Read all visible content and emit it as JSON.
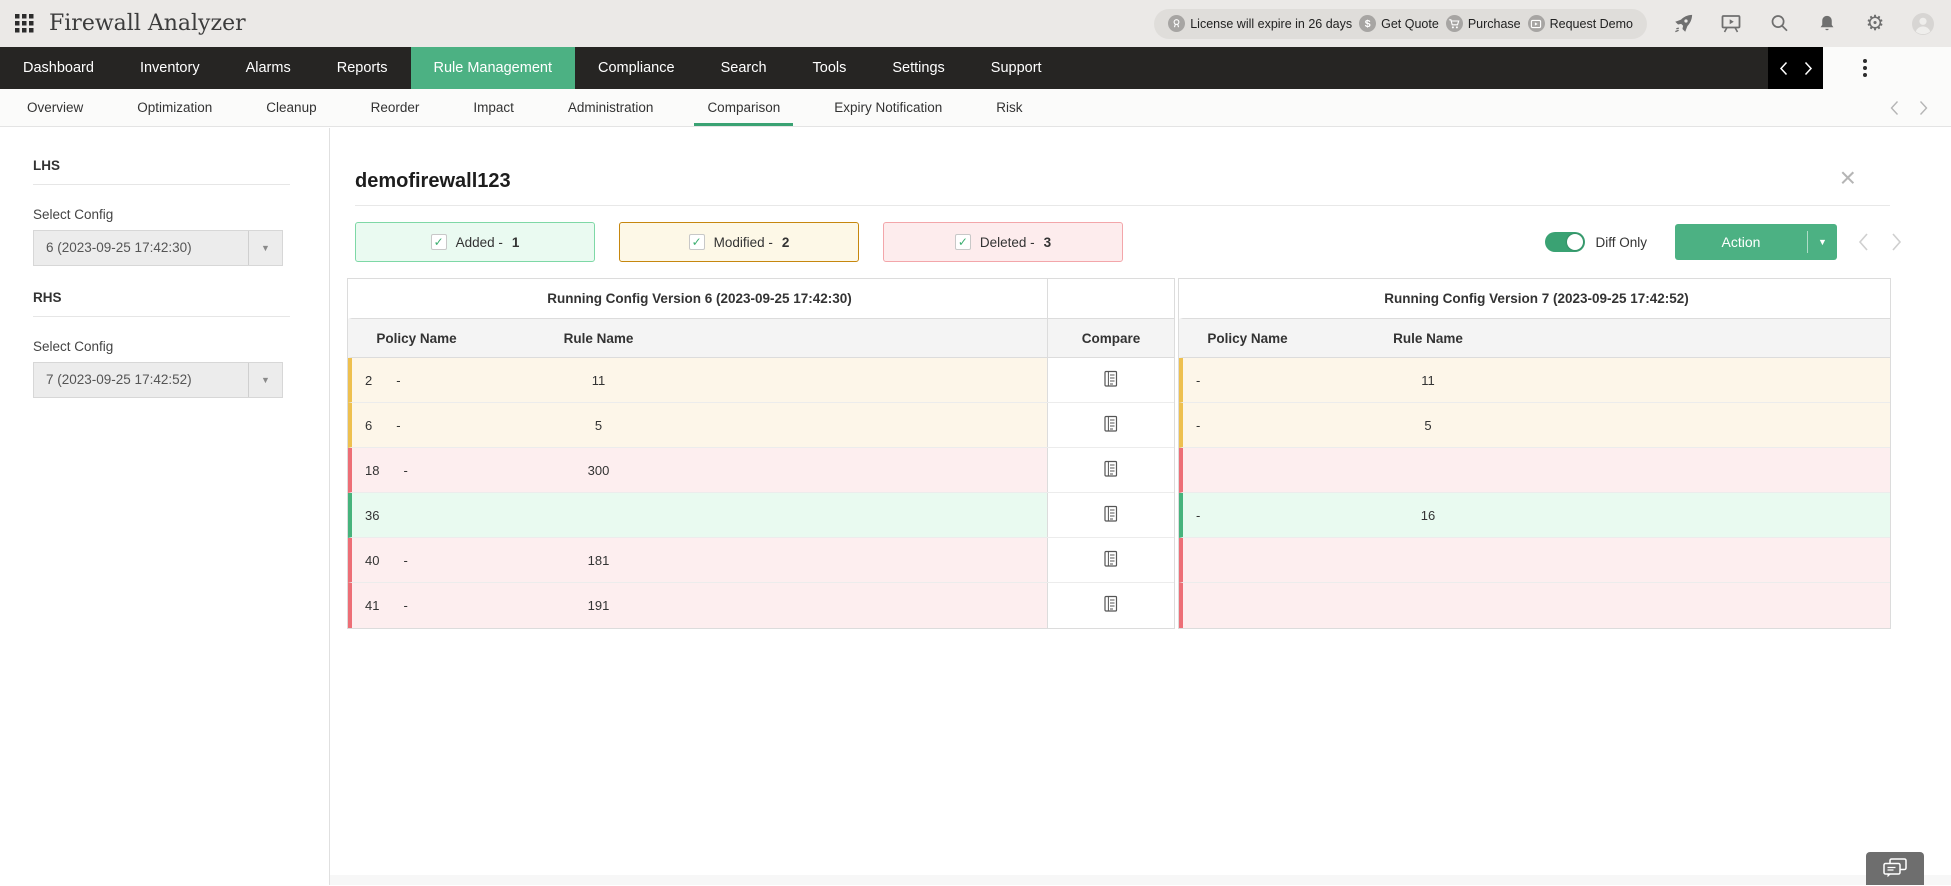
{
  "header": {
    "app_title": "Firewall Analyzer",
    "license": {
      "text": "License will expire in 26 days",
      "get_quote": "Get Quote",
      "purchase": "Purchase",
      "request_demo": "Request Demo"
    }
  },
  "nav": {
    "items": [
      "Dashboard",
      "Inventory",
      "Alarms",
      "Reports",
      "Rule Management",
      "Compliance",
      "Search",
      "Tools",
      "Settings",
      "Support"
    ],
    "active": "Rule Management"
  },
  "subnav": {
    "items": [
      "Overview",
      "Optimization",
      "Cleanup",
      "Reorder",
      "Impact",
      "Administration",
      "Comparison",
      "Expiry Notification",
      "Risk"
    ],
    "active": "Comparison"
  },
  "sidebar": {
    "lhs": {
      "heading": "LHS",
      "label": "Select Config",
      "value": "6 (2023-09-25 17:42:30)"
    },
    "rhs": {
      "heading": "RHS",
      "label": "Select Config",
      "value": "7 (2023-09-25 17:42:52)"
    }
  },
  "content": {
    "device_title": "demofirewall123",
    "filters": [
      {
        "id": "added",
        "label": "Added -",
        "count": "1"
      },
      {
        "id": "modified",
        "label": "Modified -",
        "count": "2"
      },
      {
        "id": "deleted",
        "label": "Deleted -",
        "count": "3"
      }
    ],
    "diff_only_label": "Diff Only",
    "action_label": "Action",
    "tables": {
      "left": {
        "title": "Running Config Version 6 (2023-09-25 17:42:30)",
        "policy_col": "Policy Name",
        "rule_col": "Rule Name",
        "compare_col": "Compare"
      },
      "right": {
        "title": "Running Config Version 7 (2023-09-25 17:42:52)",
        "policy_col": "Policy Name",
        "rule_col": "Rule Name"
      }
    },
    "rows": [
      {
        "type": "modified",
        "left_index": "2",
        "left_policy": "-",
        "left_rule": "11",
        "right_policy": "-",
        "right_rule": "11"
      },
      {
        "type": "modified",
        "left_index": "6",
        "left_policy": "-",
        "left_rule": "5",
        "right_policy": "-",
        "right_rule": "5"
      },
      {
        "type": "deleted",
        "left_index": "18",
        "left_policy": "-",
        "left_rule": "300",
        "right_policy": "",
        "right_rule": ""
      },
      {
        "type": "added",
        "left_index": "36",
        "left_policy": "",
        "left_rule": "",
        "right_policy": "-",
        "right_rule": "16"
      },
      {
        "type": "deleted",
        "left_index": "40",
        "left_policy": "-",
        "left_rule": "181",
        "right_policy": "",
        "right_rule": ""
      },
      {
        "type": "deleted",
        "left_index": "41",
        "left_policy": "-",
        "left_rule": "191",
        "right_policy": "",
        "right_rule": ""
      }
    ]
  },
  "colors": {
    "accent": "#4cb183",
    "accent-dark": "#3aa273",
    "added-bg": "#e9faf0",
    "added-strip": "#46b37c",
    "added-filter-bg": "#eafaf1",
    "added-filter-border": "#7ed8a6",
    "modified-bg": "#fdf6e9",
    "modified-strip": "#eec04f",
    "modified-filter-bg": "#fdf8e7",
    "modified-filter-border": "#c6870e",
    "deleted-bg": "#fdeeef",
    "deleted-strip": "#ed6e76",
    "deleted-filter-bg": "#fdeced",
    "deleted-filter-border": "#f3a6aa"
  }
}
